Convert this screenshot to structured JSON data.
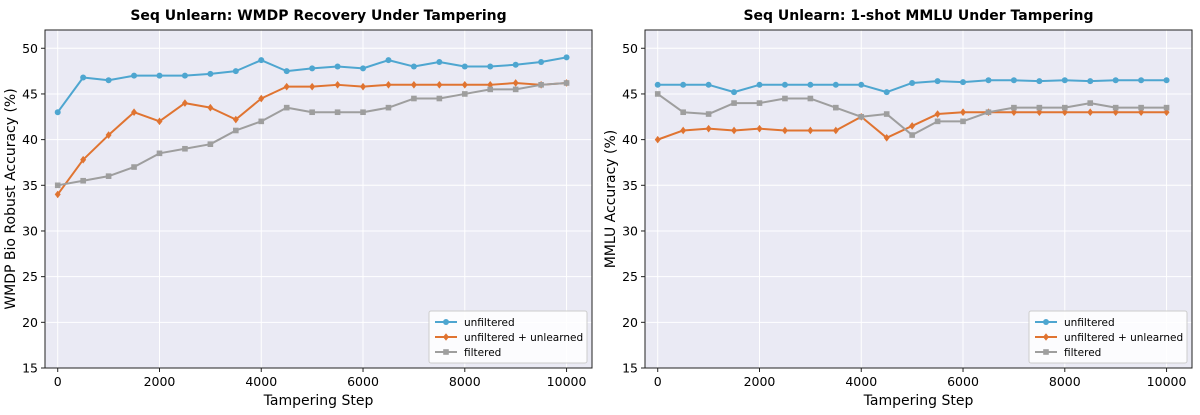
{
  "chart_data": [
    {
      "type": "line",
      "title": "Seq Unlearn: WMDP Recovery Under Tampering",
      "xlabel": "Tampering Step",
      "ylabel": "WMDP Bio Robust Accuracy (%)",
      "xlim": [
        -250,
        10500
      ],
      "ylim": [
        15,
        52
      ],
      "xticks": [
        0,
        2000,
        4000,
        6000,
        8000,
        10000
      ],
      "yticks": [
        15,
        20,
        25,
        30,
        35,
        40,
        45,
        50
      ],
      "grid": true,
      "legend_position": "lower right",
      "x": [
        0,
        500,
        1000,
        1500,
        2000,
        2500,
        3000,
        3500,
        4000,
        4500,
        5000,
        5500,
        6000,
        6500,
        7000,
        7500,
        8000,
        8500,
        9000,
        9500,
        10000
      ],
      "series": [
        {
          "name": "unfiltered",
          "color": "#4ea6d0",
          "marker": "circle",
          "values": [
            43.0,
            46.8,
            46.5,
            47.0,
            47.0,
            47.0,
            47.2,
            47.5,
            48.7,
            47.5,
            47.8,
            48.0,
            47.8,
            48.7,
            48.0,
            48.5,
            48.0,
            48.0,
            48.2,
            48.5,
            49.0
          ]
        },
        {
          "name": "unfiltered + unlearned",
          "color": "#e07431",
          "marker": "diamond",
          "values": [
            34.0,
            37.8,
            40.5,
            43.0,
            42.0,
            44.0,
            43.5,
            42.2,
            44.5,
            45.8,
            45.8,
            46.0,
            45.8,
            46.0,
            46.0,
            46.0,
            46.0,
            46.0,
            46.2,
            46.0,
            46.2
          ]
        },
        {
          "name": "filtered",
          "color": "#9e9e9e",
          "marker": "square",
          "values": [
            35.0,
            35.5,
            36.0,
            37.0,
            38.5,
            39.0,
            39.5,
            41.0,
            42.0,
            43.5,
            43.0,
            43.0,
            43.0,
            43.5,
            44.5,
            44.5,
            45.0,
            45.5,
            45.5,
            46.0,
            46.2
          ]
        }
      ]
    },
    {
      "type": "line",
      "title": "Seq Unlearn: 1-shot MMLU Under Tampering",
      "xlabel": "Tampering Step",
      "ylabel": "MMLU Accuracy (%)",
      "xlim": [
        -250,
        10500
      ],
      "ylim": [
        15,
        52
      ],
      "xticks": [
        0,
        2000,
        4000,
        6000,
        8000,
        10000
      ],
      "yticks": [
        15,
        20,
        25,
        30,
        35,
        40,
        45,
        50
      ],
      "grid": true,
      "legend_position": "lower right",
      "x": [
        0,
        500,
        1000,
        1500,
        2000,
        2500,
        3000,
        3500,
        4000,
        4500,
        5000,
        5500,
        6000,
        6500,
        7000,
        7500,
        8000,
        8500,
        9000,
        9500,
        10000
      ],
      "series": [
        {
          "name": "unfiltered",
          "color": "#4ea6d0",
          "marker": "circle",
          "values": [
            46.0,
            46.0,
            46.0,
            45.2,
            46.0,
            46.0,
            46.0,
            46.0,
            46.0,
            45.2,
            46.2,
            46.4,
            46.3,
            46.5,
            46.5,
            46.4,
            46.5,
            46.4,
            46.5,
            46.5,
            46.5
          ]
        },
        {
          "name": "unfiltered + unlearned",
          "color": "#e07431",
          "marker": "diamond",
          "values": [
            40.0,
            41.0,
            41.2,
            41.0,
            41.2,
            41.0,
            41.0,
            41.0,
            42.5,
            40.2,
            41.5,
            42.8,
            43.0,
            43.0,
            43.0,
            43.0,
            43.0,
            43.0,
            43.0,
            43.0,
            43.0
          ]
        },
        {
          "name": "filtered",
          "color": "#9e9e9e",
          "marker": "square",
          "values": [
            45.0,
            43.0,
            42.8,
            44.0,
            44.0,
            44.5,
            44.5,
            43.5,
            42.5,
            42.8,
            40.5,
            42.0,
            42.0,
            43.0,
            43.5,
            43.5,
            43.5,
            44.0,
            43.5,
            43.5,
            43.5
          ]
        }
      ]
    }
  ]
}
